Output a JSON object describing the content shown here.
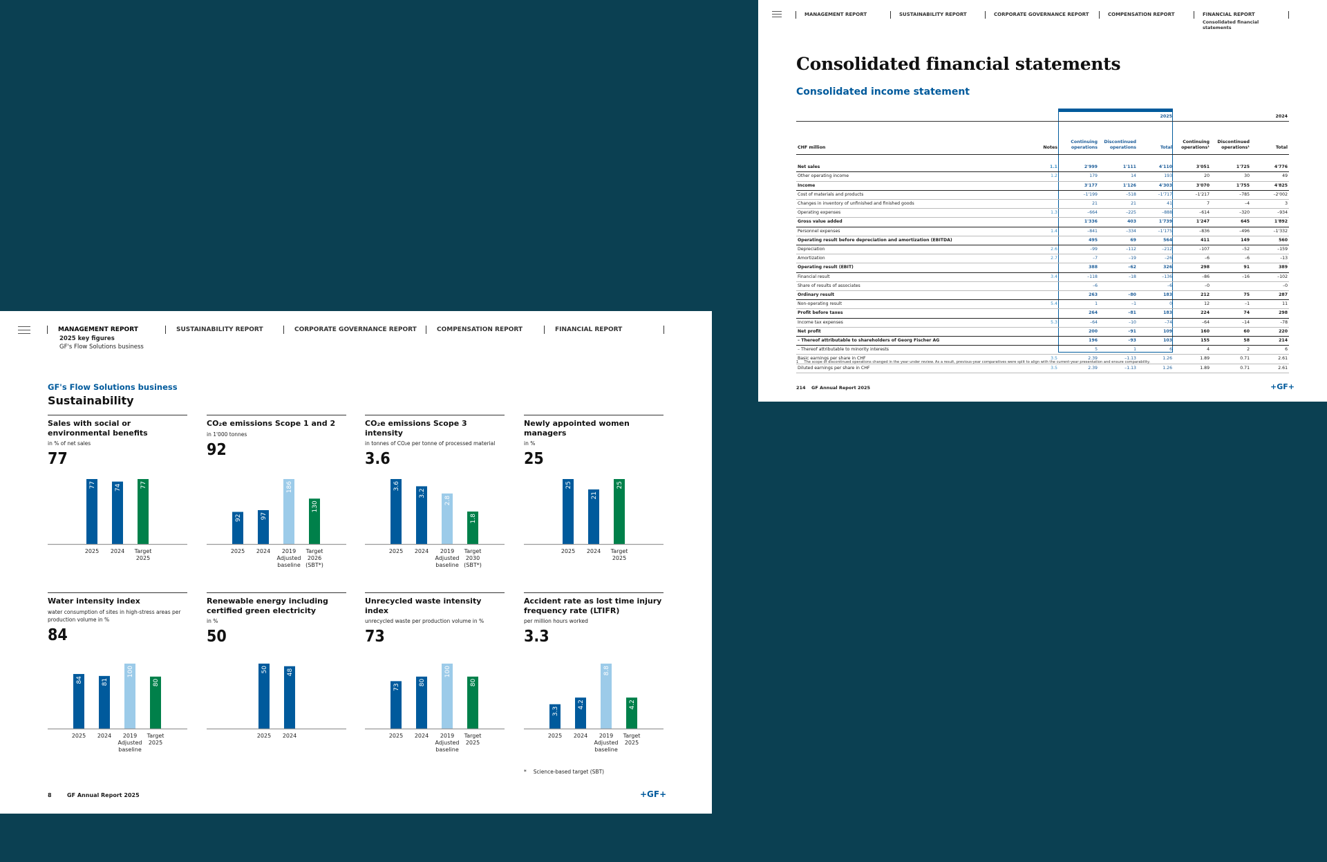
{
  "left_page": {
    "nav": [
      {
        "label": "MANAGEMENT REPORT",
        "active": true
      },
      {
        "label": "SUSTAINABILITY REPORT"
      },
      {
        "label": "CORPORATE GOVERNANCE REPORT"
      },
      {
        "label": "COMPENSATION REPORT"
      },
      {
        "label": "FINANCIAL REPORT"
      }
    ],
    "nav_sub": {
      "line1": "2025 key figures",
      "line2": "GF's Flow Solutions business"
    },
    "kicker": "GF's Flow Solutions business",
    "title": "Sustainability",
    "footnote": {
      "mark": "*",
      "text": "Science-based target (SBT)"
    },
    "footer": {
      "page": "8",
      "label": "GF Annual Report 2025",
      "logo": "+GF+"
    }
  },
  "chart_data": [
    {
      "type": "bar",
      "title": "Sales with social or environmental benefits",
      "unit": "in % of net sales",
      "headline": "77",
      "categories": [
        "2025",
        "2024",
        "Target\n2025"
      ],
      "values": [
        77,
        74,
        77
      ],
      "labels": [
        "77",
        "74",
        "77"
      ],
      "kinds": [
        "actual",
        "actual",
        "target"
      ],
      "ylim": [
        0,
        77
      ]
    },
    {
      "type": "bar",
      "title": "CO₂e emissions Scope 1 and 2",
      "unit": "in 1'000 tonnes",
      "headline": "92",
      "categories": [
        "2025",
        "2024",
        "2019\nAdjusted\nbaseline",
        "Target\n2026\n(SBT*)"
      ],
      "values": [
        92,
        97,
        186,
        130
      ],
      "labels": [
        "92",
        "97",
        "186",
        "130"
      ],
      "kinds": [
        "actual",
        "actual",
        "baseline",
        "target"
      ],
      "ylim": [
        0,
        186
      ]
    },
    {
      "type": "bar",
      "title": "CO₂e emissions Scope 3 intensity",
      "unit": "in tonnes of CO₂e per tonne of processed material",
      "headline": "3.6",
      "categories": [
        "2025",
        "2024",
        "2019\nAdjusted\nbaseline",
        "Target\n2030\n(SBT*)"
      ],
      "values": [
        3.6,
        3.2,
        2.8,
        1.8
      ],
      "labels": [
        "3.6",
        "3.2",
        "2.8",
        "1.8"
      ],
      "kinds": [
        "actual",
        "actual",
        "baseline",
        "target"
      ],
      "ylim": [
        0,
        3.6
      ]
    },
    {
      "type": "bar",
      "title": "Newly appointed women managers",
      "unit": "in %",
      "headline": "25",
      "categories": [
        "2025",
        "2024",
        "Target\n2025"
      ],
      "values": [
        25,
        21,
        25
      ],
      "labels": [
        "25",
        "21",
        "25"
      ],
      "kinds": [
        "actual",
        "actual",
        "target"
      ],
      "ylim": [
        0,
        25
      ]
    },
    {
      "type": "bar",
      "title": "Water intensity index",
      "unit": "water consumption of sites in high-stress areas per production volume in %",
      "headline": "84",
      "categories": [
        "2025",
        "2024",
        "2019\nAdjusted\nbaseline",
        "Target\n2025"
      ],
      "values": [
        84,
        81,
        100,
        80
      ],
      "labels": [
        "84",
        "81",
        "100",
        "80"
      ],
      "kinds": [
        "actual",
        "actual",
        "baseline",
        "target"
      ],
      "ylim": [
        0,
        100
      ]
    },
    {
      "type": "bar",
      "title": "Renewable energy including certified green electricity",
      "unit": "in %",
      "headline": "50",
      "categories": [
        "2025",
        "2024"
      ],
      "values": [
        50,
        48
      ],
      "labels": [
        "50",
        "48"
      ],
      "kinds": [
        "actual",
        "actual"
      ],
      "ylim": [
        0,
        50
      ]
    },
    {
      "type": "bar",
      "title": "Unrecycled waste intensity index",
      "unit": "unrecycled waste per production volume in %",
      "headline": "73",
      "categories": [
        "2025",
        "2024",
        "2019\nAdjusted\nbaseline",
        "Target\n2025"
      ],
      "values": [
        73,
        80,
        100,
        80
      ],
      "labels": [
        "73",
        "80",
        "100",
        "80"
      ],
      "kinds": [
        "actual",
        "actual",
        "baseline",
        "target"
      ],
      "ylim": [
        0,
        100
      ]
    },
    {
      "type": "bar",
      "title": "Accident rate as lost time injury frequency rate (LTIFR)",
      "unit": "per million hours worked",
      "headline": "3.3",
      "categories": [
        "2025",
        "2024",
        "2019\nAdjusted\nbaseline",
        "Target\n2025"
      ],
      "values": [
        3.3,
        4.2,
        8.8,
        4.2
      ],
      "labels": [
        "3.3",
        "4.2",
        "8.8",
        "4.2"
      ],
      "kinds": [
        "actual",
        "actual",
        "baseline",
        "target"
      ],
      "ylim": [
        0,
        8.8
      ]
    }
  ],
  "colors": {
    "actual": "#005a9c",
    "baseline": "#9ccbe9",
    "target": "#00804a",
    "brand": "#005a9c",
    "background": "#0b4052"
  },
  "right_page": {
    "nav": [
      {
        "label": "MANAGEMENT REPORT"
      },
      {
        "label": "SUSTAINABILITY REPORT"
      },
      {
        "label": "CORPORATE GOVERNANCE REPORT"
      },
      {
        "label": "COMPENSATION REPORT"
      },
      {
        "label": "FINANCIAL REPORT",
        "sub": "Consolidated financial statements"
      }
    ],
    "title": "Consolidated financial statements",
    "subtitle": "Consolidated income statement",
    "table": {
      "years": [
        "2025",
        "2024"
      ],
      "headers": [
        "CHF million",
        "Notes",
        "Continuing operations",
        "Discontinued operations",
        "Total",
        "Continuing operations¹",
        "Discontinued operations¹",
        "Total"
      ],
      "rows": [
        {
          "label": "Net sales",
          "note": "1.1",
          "cells": [
            "2'999",
            "1'111",
            "4'110",
            "3'051",
            "1'725",
            "4'776"
          ],
          "bold": true
        },
        {
          "label": "Other operating income",
          "note": "1.2",
          "cells": [
            "179",
            "14",
            "193",
            "20",
            "30",
            "49"
          ]
        },
        {
          "label": "Income",
          "note": "",
          "cells": [
            "3'177",
            "1'126",
            "4'303",
            "3'070",
            "1'755",
            "4'825"
          ],
          "bold": true
        },
        {
          "label": "Cost of materials and products",
          "note": "",
          "cells": [
            "–1'199",
            "–518",
            "–1'717",
            "–1'217",
            "–785",
            "–2'002"
          ]
        },
        {
          "label": "Changes in inventory of unfinished and finished goods",
          "note": "",
          "cells": [
            "21",
            "21",
            "41",
            "7",
            "–4",
            "3"
          ]
        },
        {
          "label": "Operating expenses",
          "note": "1.3",
          "cells": [
            "–664",
            "–225",
            "–888",
            "–614",
            "–320",
            "–934"
          ]
        },
        {
          "label": "Gross value added",
          "note": "",
          "cells": [
            "1'336",
            "403",
            "1'739",
            "1'247",
            "645",
            "1'892"
          ],
          "bold": true
        },
        {
          "label": "Personnel expenses",
          "note": "1.4",
          "cells": [
            "–841",
            "–334",
            "–1'175",
            "–836",
            "–496",
            "–1'332"
          ]
        },
        {
          "label": "Operating result before depreciation and amortization (EBITDA)",
          "note": "",
          "cells": [
            "495",
            "69",
            "564",
            "411",
            "149",
            "560"
          ],
          "bold": true
        },
        {
          "label": "Depreciation",
          "note": "2.6",
          "cells": [
            "–99",
            "–112",
            "–212",
            "–107",
            "–52",
            "–159"
          ]
        },
        {
          "label": "Amortization",
          "note": "2.7",
          "cells": [
            "–7",
            "–19",
            "–26",
            "–6",
            "–6",
            "–13"
          ]
        },
        {
          "label": "Operating result (EBIT)",
          "note": "",
          "cells": [
            "388",
            "–62",
            "326",
            "298",
            "91",
            "389"
          ],
          "bold": true
        },
        {
          "label": "Financial result",
          "note": "3.4",
          "cells": [
            "–118",
            "–18",
            "–136",
            "–86",
            "–16",
            "–102"
          ]
        },
        {
          "label": "Share of results of associates",
          "note": "",
          "cells": [
            "–6",
            "",
            "–6",
            "–0",
            "",
            "–0"
          ]
        },
        {
          "label": "Ordinary result",
          "note": "",
          "cells": [
            "263",
            "–80",
            "183",
            "212",
            "75",
            "287"
          ],
          "bold": true
        },
        {
          "label": "Non-operating result",
          "note": "5.4",
          "cells": [
            "1",
            "–1",
            "0",
            "12",
            "–1",
            "11"
          ]
        },
        {
          "label": "Profit before taxes",
          "note": "",
          "cells": [
            "264",
            "–81",
            "183",
            "224",
            "74",
            "298"
          ],
          "bold": true
        },
        {
          "label": "Income tax expenses",
          "note": "5.3",
          "cells": [
            "–64",
            "–10",
            "–74",
            "–64",
            "–14",
            "–78"
          ]
        },
        {
          "label": "Net profit",
          "note": "",
          "cells": [
            "200",
            "–91",
            "109",
            "160",
            "60",
            "220"
          ],
          "bold": true
        },
        {
          "label": "– Thereof attributable to shareholders of Georg Fischer AG",
          "note": "",
          "cells": [
            "196",
            "–93",
            "103",
            "155",
            "58",
            "214"
          ],
          "bold": true
        },
        {
          "label": "– Thereof attributable to minority interests",
          "note": "",
          "cells": [
            "5",
            "1",
            "6",
            "4",
            "2",
            "6"
          ]
        },
        {
          "label": "Basic earnings per share in CHF",
          "note": "3.5",
          "cells": [
            "2.39",
            "–1.13",
            "1.26",
            "1.89",
            "0.71",
            "2.61"
          ]
        },
        {
          "label": "Diluted earnings per share in CHF",
          "note": "3.5",
          "cells": [
            "2.39",
            "–1.13",
            "1.26",
            "1.89",
            "0.71",
            "2.61"
          ]
        }
      ]
    },
    "footnote": {
      "mark": "1",
      "text": "The scope of discontinued operations changed in the year under review. As a result, previous-year comparatives were split to align with the current-year presentation and ensure comparability."
    },
    "footer": {
      "page": "214",
      "label": "GF Annual Report 2025",
      "logo": "+GF+"
    }
  }
}
